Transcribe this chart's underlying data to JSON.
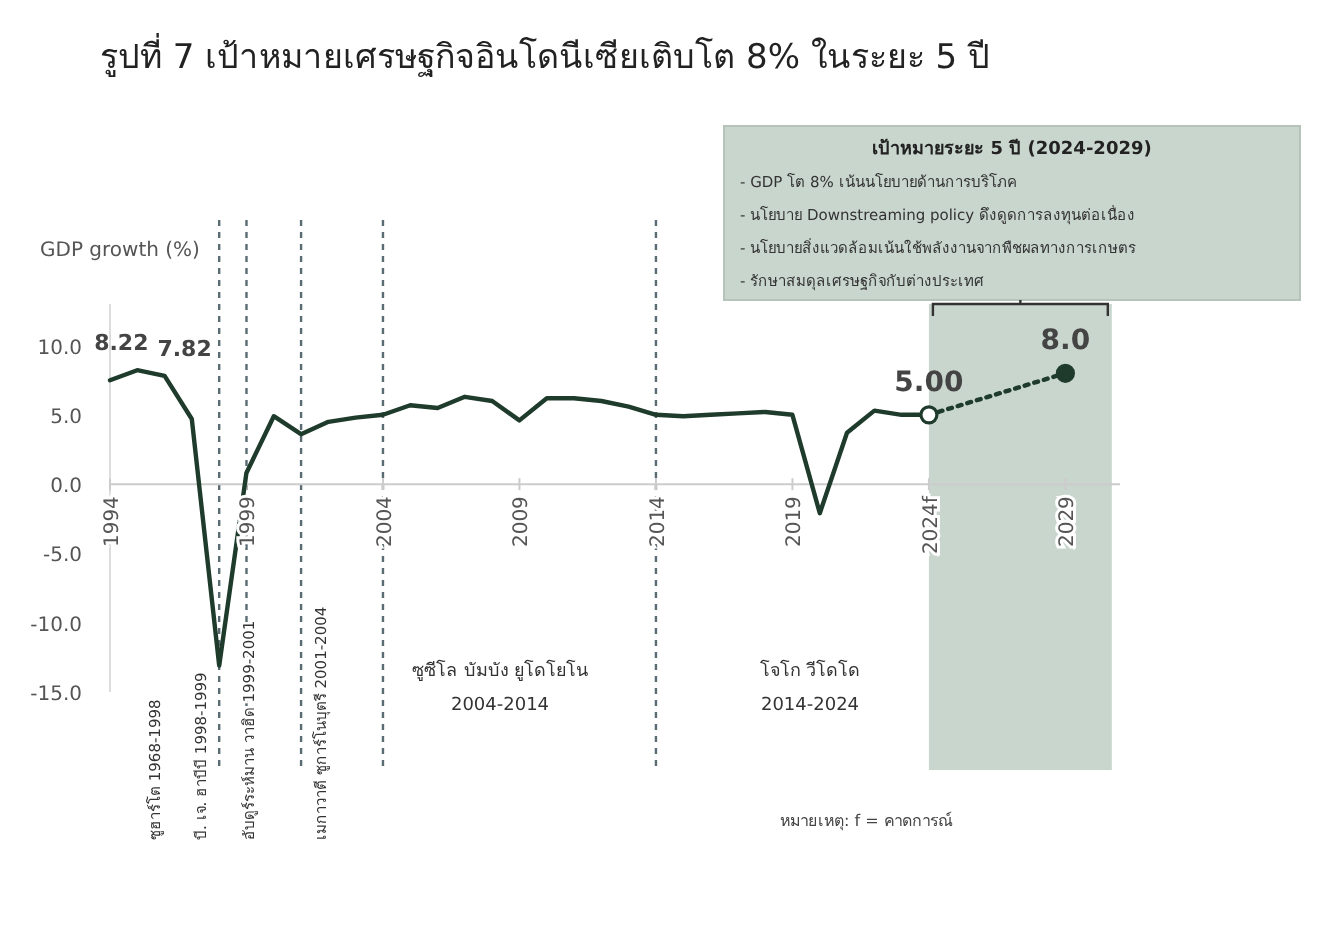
{
  "chart_data": {
    "type": "line",
    "title": "รูปที่ 7 เป้าหมายเศรษฐกิจอินโดนีเซียเติบโต 8% ในระยะ 5 ปี",
    "ylabel": "GDP growth (%)",
    "xlim": [
      1994,
      2031
    ],
    "ylim": [
      -15,
      13
    ],
    "xticks": [
      1994,
      1999,
      2004,
      2009,
      2014,
      2019,
      {
        "value": 2024,
        "label": "2024f"
      },
      2029
    ],
    "yticks": [
      {
        "value": -15,
        "label": "-15.0"
      },
      {
        "value": -10,
        "label": "-10.0"
      },
      {
        "value": -5,
        "label": "-5.0"
      },
      {
        "value": 0,
        "label": "0.0"
      },
      {
        "value": 5,
        "label": "5.0"
      },
      {
        "value": 10,
        "label": "10.0"
      }
    ],
    "grid": false,
    "series": [
      {
        "color": "#1e3b2c",
        "line_style": "solid",
        "marker": "none",
        "x": [
          1994,
          1995,
          1996,
          1997,
          1998,
          1999,
          2000,
          2001,
          2002,
          2003,
          2004,
          2005,
          2006,
          2007,
          2008,
          2009,
          2010,
          2011,
          2012,
          2013,
          2014,
          2015,
          2016,
          2017,
          2018,
          2019,
          2020,
          2021,
          2022,
          2023,
          2024
        ],
        "values": [
          7.5,
          8.22,
          7.82,
          4.7,
          -13.1,
          0.8,
          4.9,
          3.6,
          4.5,
          4.8,
          5.0,
          5.7,
          5.5,
          6.3,
          6.0,
          4.6,
          6.2,
          6.2,
          6.0,
          5.6,
          5.0,
          4.9,
          5.0,
          5.1,
          5.2,
          5.0,
          -2.1,
          3.7,
          5.3,
          5.0,
          5.0
        ],
        "value_labels": [
          null,
          "8.22",
          "7.82",
          null,
          null,
          null,
          null,
          null,
          null,
          null,
          null,
          null,
          null,
          null,
          null,
          null,
          null,
          null,
          null,
          null,
          null,
          null,
          null,
          null,
          null,
          null,
          null,
          null,
          null,
          null,
          null
        ]
      },
      {
        "color": "#1e3b2c",
        "line_style": "dotted",
        "marker": "circle",
        "x": [
          2024,
          2029
        ],
        "values": [
          5.0,
          8.0
        ],
        "value_labels": [
          "5.00",
          "8.0"
        ]
      }
    ],
    "ref_lines": [
      {
        "axis": "x",
        "value": 1998,
        "line_style": "dashed",
        "color": "#5a6b73"
      },
      {
        "axis": "x",
        "value": 1999,
        "line_style": "dashed",
        "color": "#5a6b73"
      },
      {
        "axis": "x",
        "value": 2001,
        "line_style": "dashed",
        "color": "#5a6b73"
      },
      {
        "axis": "x",
        "value": 2004,
        "line_style": "dashed",
        "color": "#5a6b73"
      },
      {
        "axis": "x",
        "value": 2014,
        "line_style": "dashed",
        "color": "#5a6b73"
      }
    ],
    "bands": [
      {
        "axis": "x",
        "from": 2024,
        "to": 2030.7,
        "color": "#c9d6ce"
      }
    ],
    "annotations": [
      "เป้าหมายระยะ 5 ปี (2024-2029)",
      "- GDP โต 8% เน้นนโยบายด้านการบริโภค",
      "- นโยบาย Downstreaming policy ดึงดูดการลงทุนต่อเนื่อง",
      "- นโยบายสิ่งแวดล้อมเน้นใช้พลังงานจากพืชผลทางการเกษตร",
      "- รักษาสมดุลเศรษฐกิจกับต่างประเทศ",
      "ซูฮาร์โต 1968-1998",
      "บี. เจ. ฮาบีบี 1998-1999",
      "อับดูร์ระห์มาน วาฮิด 1999-2001",
      "เมกาวาตี ซูการ์โนบุตรี 2001-2004",
      "ซูซีโล บัมบัง ยูโดโยโน\n2004-2014",
      "โจโก วีโดโด\n2014-2024",
      "หมายเหตุ: f = คาดการณ์"
    ]
  }
}
